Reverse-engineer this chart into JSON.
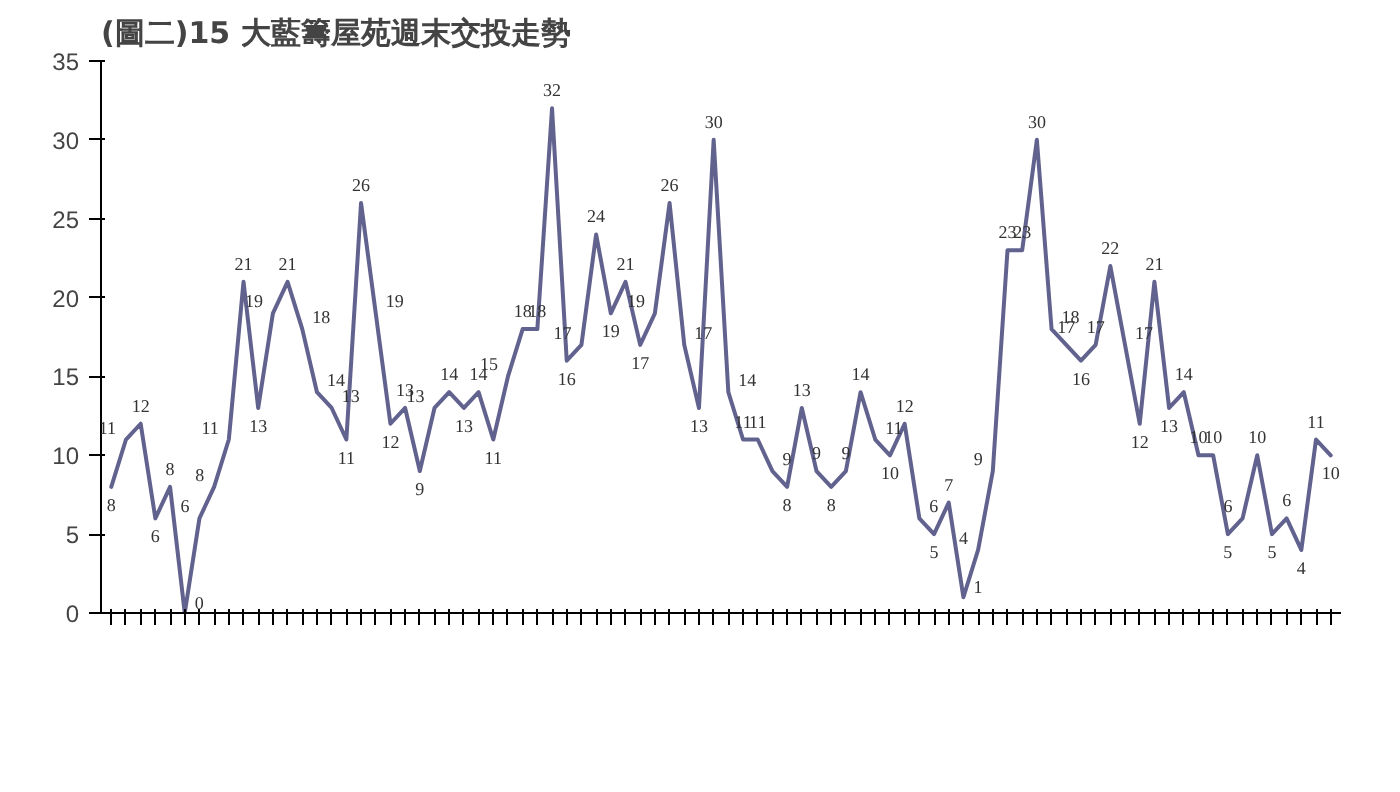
{
  "chart_data": {
    "type": "line",
    "title": "(圖二)15 大藍籌屋苑週末交投走勢",
    "categories": [
      null,
      null,
      null,
      null,
      null,
      null,
      null,
      null,
      null,
      null,
      null,
      null,
      null,
      null,
      null,
      null,
      null,
      null,
      null,
      null,
      null,
      null,
      null,
      null,
      null,
      null,
      null,
      null,
      null,
      null,
      null,
      null,
      null,
      null,
      null,
      null,
      null,
      null,
      null,
      null,
      null,
      null,
      null,
      null,
      null,
      null,
      null,
      null,
      null,
      null,
      null,
      null,
      null,
      null,
      null,
      null,
      null,
      null,
      null,
      null,
      null,
      null,
      null,
      null,
      null,
      null,
      null,
      null,
      null,
      null,
      null,
      null,
      null,
      null,
      null,
      null,
      null,
      null,
      null,
      null,
      null,
      null,
      null,
      null
    ],
    "series": [
      {
        "color": "#62628f",
        "values": [
          8,
          11,
          12,
          6,
          8,
          0,
          6,
          8,
          11,
          21,
          13,
          19,
          21,
          18,
          14,
          13,
          11,
          26,
          19,
          12,
          13,
          9,
          13,
          14,
          13,
          14,
          11,
          15,
          18,
          18,
          32,
          16,
          17,
          24,
          19,
          21,
          17,
          19,
          26,
          17,
          13,
          30,
          14,
          11,
          11,
          9,
          8,
          13,
          9,
          8,
          9,
          14,
          11,
          10,
          12,
          6,
          5,
          7,
          1,
          4,
          9,
          23,
          23,
          30,
          18,
          17,
          16,
          17,
          22,
          17,
          12,
          21,
          13,
          14,
          10,
          10,
          5,
          6,
          10,
          5,
          6,
          4,
          11,
          10
        ]
      }
    ],
    "ylim": [
      0,
      35
    ],
    "yticks": [
      0,
      5,
      10,
      15,
      20,
      25,
      30,
      35
    ],
    "grid": false,
    "data_labels": true
  }
}
